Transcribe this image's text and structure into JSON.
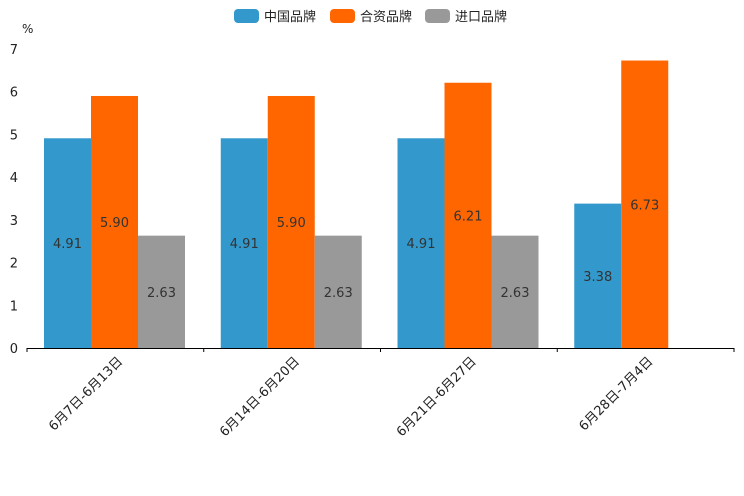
{
  "chart_data": {
    "type": "bar",
    "unit": "%",
    "categories": [
      "6月7日-6月13日",
      "6月14日-6月20日",
      "6月21日-6月27日",
      "6月28日-7月4日"
    ],
    "series": [
      {
        "name": "中国品牌",
        "color": "#3399cc",
        "values": [
          4.91,
          4.91,
          4.91,
          3.38
        ],
        "labels": [
          "4.91",
          "4.91",
          "4.91",
          "3.38"
        ]
      },
      {
        "name": "合资品牌",
        "color": "#ff6600",
        "values": [
          5.9,
          5.9,
          6.21,
          6.73
        ],
        "labels": [
          "5.90",
          "5.90",
          "6.21",
          "6.73"
        ]
      },
      {
        "name": "进口品牌",
        "color": "#999999",
        "values": [
          2.63,
          2.63,
          2.63,
          null
        ],
        "labels": [
          "2.63",
          "2.63",
          "2.63",
          null
        ]
      }
    ],
    "ylim": [
      0,
      7
    ],
    "yticks": [
      0,
      1,
      2,
      3,
      4,
      5,
      6,
      7
    ],
    "legend_position": "top-center",
    "grid": false
  }
}
